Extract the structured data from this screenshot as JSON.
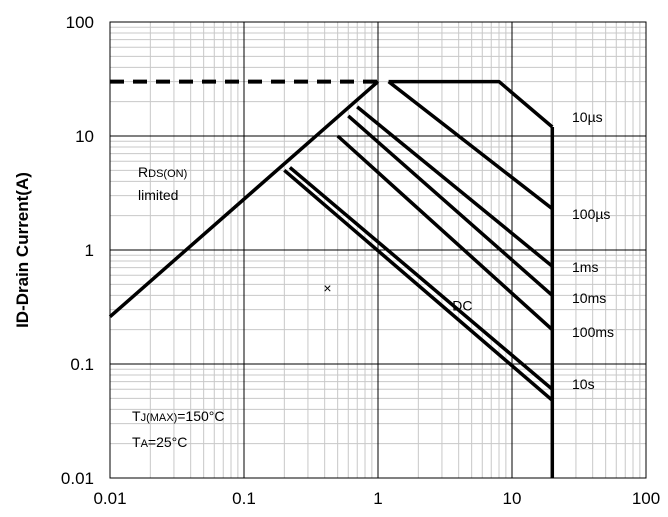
{
  "chart_data": {
    "type": "line",
    "title": "",
    "xlabel": "",
    "ylabel": "ID-Drain Current(A)",
    "x_scale": "log",
    "y_scale": "log",
    "xlim": [
      0.01,
      100
    ],
    "ylim": [
      0.01,
      100
    ],
    "grid": true,
    "x_ticks": [
      "0.01",
      "0.1",
      "1",
      "10",
      "100"
    ],
    "y_ticks": [
      "0.01",
      "0.1",
      "1",
      "10",
      "100"
    ],
    "rds_label": {
      "main": "R",
      "sub": "DS(ON)",
      "line2": "limited"
    },
    "conditions": [
      {
        "main": "T",
        "sub": "J(MAX)",
        "rest": "=150°C"
      },
      {
        "main": "T",
        "sub": "A",
        "rest": "=25°C"
      }
    ],
    "marker": {
      "symbol": "×",
      "x": 0.42,
      "y": 0.45
    },
    "rds_limit_line": [
      [
        0.01,
        0.26
      ],
      [
        1.0,
        30.0
      ]
    ],
    "current_limit_dashed": [
      [
        0.01,
        30.0
      ],
      [
        1.0,
        30.0
      ]
    ],
    "drain_voltage_limit": [
      [
        20.0,
        0.01
      ],
      [
        20.0,
        12.0
      ]
    ],
    "series": [
      {
        "name": "10µs",
        "points": [
          [
            1.2,
            30.0
          ],
          [
            8.0,
            30.0
          ],
          [
            20.0,
            12.0
          ]
        ]
      },
      {
        "name": "100µs",
        "points": [
          [
            1.2,
            30.0
          ],
          [
            20.0,
            2.3
          ]
        ]
      },
      {
        "name": "1ms",
        "points": [
          [
            0.7,
            18.0
          ],
          [
            20.0,
            0.72
          ]
        ]
      },
      {
        "name": "10ms",
        "points": [
          [
            0.6,
            15.0
          ],
          [
            20.0,
            0.4
          ]
        ]
      },
      {
        "name": "100ms",
        "points": [
          [
            0.5,
            10.0
          ],
          [
            20.0,
            0.2
          ]
        ]
      },
      {
        "name": "10s",
        "points": [
          [
            0.22,
            5.3
          ],
          [
            20.0,
            0.06
          ]
        ]
      },
      {
        "name": "DC",
        "points": [
          [
            0.2,
            5.0
          ],
          [
            20.0,
            0.048
          ]
        ]
      }
    ],
    "series_label_positions": [
      "right",
      "right",
      "right",
      "right",
      "right",
      "right",
      "inside"
    ]
  }
}
